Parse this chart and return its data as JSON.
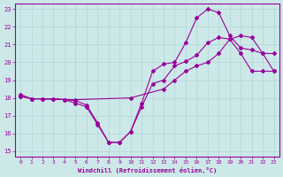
{
  "xlabel": "Windchill (Refroidissement éolien,°C)",
  "bg_color": "#cce8e8",
  "line_color": "#990099",
  "xlim": [
    -0.5,
    23.5
  ],
  "ylim": [
    14.7,
    23.3
  ],
  "xticks": [
    0,
    1,
    2,
    3,
    4,
    5,
    6,
    7,
    8,
    9,
    10,
    11,
    12,
    13,
    14,
    15,
    16,
    17,
    18,
    19,
    20,
    21,
    22,
    23
  ],
  "yticks": [
    15,
    16,
    17,
    18,
    19,
    20,
    21,
    22,
    23
  ],
  "line1_x": [
    0,
    1,
    2,
    3,
    4,
    5,
    6,
    7,
    8,
    9,
    10,
    11,
    12,
    13,
    14,
    15,
    16,
    17,
    18,
    19,
    20,
    21,
    22,
    23
  ],
  "line1_y": [
    18.1,
    17.95,
    17.95,
    17.95,
    17.9,
    17.7,
    17.5,
    16.5,
    15.5,
    15.5,
    16.1,
    17.5,
    18.8,
    19.0,
    19.8,
    20.05,
    20.4,
    21.1,
    21.4,
    21.3,
    20.5,
    19.5,
    19.5,
    19.5
  ],
  "line2_x": [
    0,
    1,
    2,
    3,
    4,
    5,
    6,
    7,
    8,
    9,
    10,
    11,
    12,
    13,
    14,
    15,
    16,
    17,
    18,
    19,
    20,
    21,
    22,
    23
  ],
  "line2_y": [
    18.2,
    17.95,
    17.95,
    17.95,
    17.9,
    17.85,
    17.6,
    16.6,
    15.5,
    15.5,
    16.1,
    17.7,
    19.5,
    19.9,
    20.0,
    21.1,
    22.5,
    23.0,
    22.8,
    21.5,
    20.8,
    20.7,
    20.5,
    20.5
  ],
  "line3_x": [
    0,
    1,
    5,
    10,
    13,
    14,
    15,
    16,
    17,
    18,
    19,
    20,
    21,
    22,
    23
  ],
  "line3_y": [
    18.1,
    17.95,
    17.9,
    18.0,
    18.5,
    19.0,
    19.5,
    19.8,
    20.0,
    20.5,
    21.3,
    21.5,
    21.4,
    20.5,
    19.5
  ]
}
